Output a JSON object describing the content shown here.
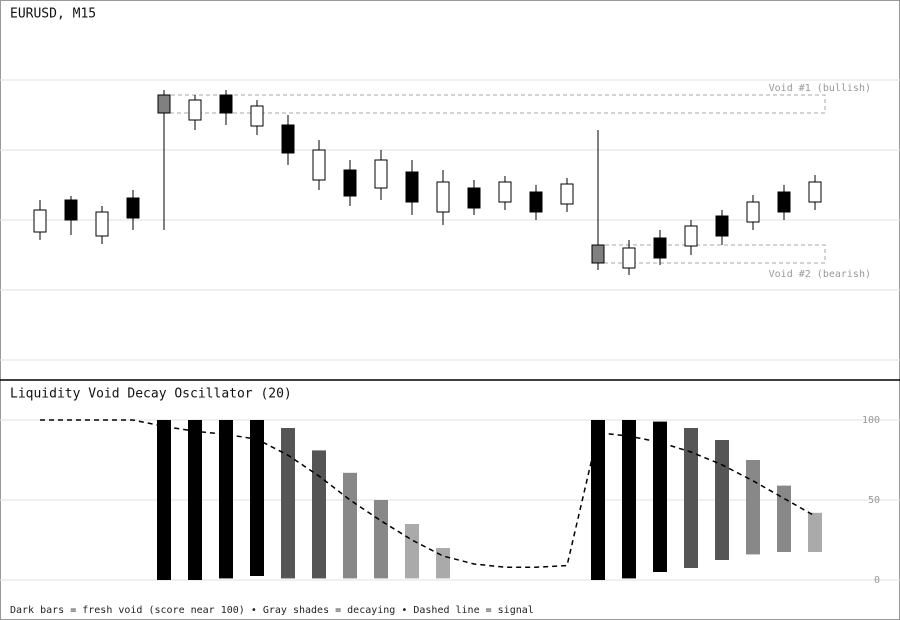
{
  "chart_data": [
    {
      "type": "candlestick",
      "title": "EURUSD, M15",
      "categories": [
        null,
        null,
        null,
        null,
        null,
        null,
        null,
        null,
        null,
        null,
        null,
        null,
        null,
        null,
        null,
        null,
        null,
        null,
        null,
        null,
        null,
        null,
        null,
        null,
        null,
        null
      ],
      "open": [
        148,
        180,
        144,
        182,
        267,
        260,
        285,
        254,
        255,
        200,
        210,
        192,
        208,
        168,
        192,
        178,
        188,
        176,
        135,
        112,
        142,
        134,
        164,
        158,
        188,
        178
      ],
      "high": [
        180,
        184,
        174,
        190,
        290,
        285,
        290,
        280,
        265,
        240,
        220,
        230,
        220,
        210,
        200,
        204,
        195,
        202,
        250,
        140,
        150,
        160,
        170,
        185,
        195,
        205
      ],
      "low": [
        140,
        145,
        136,
        150,
        150,
        250,
        255,
        245,
        215,
        190,
        174,
        180,
        165,
        155,
        165,
        170,
        160,
        168,
        110,
        105,
        115,
        125,
        135,
        150,
        160,
        170
      ],
      "close": [
        170,
        160,
        168,
        162,
        285,
        280,
        267,
        274,
        227,
        230,
        184,
        220,
        178,
        198,
        172,
        198,
        168,
        196,
        117,
        132,
        122,
        154,
        144,
        178,
        168,
        198
      ],
      "colors": [
        "#ffffff",
        "#000000",
        "#ffffff",
        "#000000",
        "#808080",
        "#ffffff",
        "#000000",
        "#ffffff",
        "#000000",
        "#ffffff",
        "#000000",
        "#ffffff",
        "#000000",
        "#ffffff",
        "#000000",
        "#ffffff",
        "#000000",
        "#ffffff",
        "#808080",
        "#ffffff",
        "#000000",
        "#ffffff",
        "#000000",
        "#ffffff",
        "#000000",
        "#ffffff"
      ],
      "ylim": [
        0,
        380
      ],
      "zones": [
        {
          "label": "Void #1 (bullish)",
          "high": 285,
          "low": 267,
          "from": 4
        },
        {
          "label": "Void #2 (bearish)",
          "high": 135,
          "low": 117,
          "from": 18
        }
      ]
    },
    {
      "type": "range-bar",
      "title": "Liquidity Void Decay Oscillator (20)",
      "categories": [
        null,
        null,
        null,
        null,
        null,
        null,
        null,
        null,
        null,
        null,
        null,
        null,
        null,
        null,
        null,
        null,
        null,
        null,
        null,
        null,
        null,
        null,
        null,
        null,
        null,
        null
      ],
      "ylim": [
        0,
        100
      ],
      "yticks": [
        0,
        50,
        100
      ],
      "grid": true,
      "bars": {
        "low": [
          null,
          null,
          null,
          null,
          0,
          0,
          1,
          2.5,
          1,
          1,
          1,
          1,
          1,
          1,
          null,
          null,
          null,
          null,
          0,
          1,
          5,
          7.5,
          12.5,
          16,
          17.5,
          17.5
        ],
        "high": [
          null,
          null,
          null,
          null,
          100,
          100,
          100,
          100,
          95,
          81,
          67,
          50,
          35,
          20,
          null,
          null,
          null,
          null,
          100,
          100,
          99,
          95,
          87.5,
          75,
          59,
          42
        ],
        "colors": [
          null,
          null,
          null,
          null,
          "#000000",
          "#000000",
          "#000000",
          "#000000",
          "#555555",
          "#555555",
          "#888888",
          "#888888",
          "#aaaaaa",
          "#aaaaaa",
          null,
          null,
          null,
          null,
          "#000000",
          "#000000",
          "#000000",
          "#555555",
          "#555555",
          "#888888",
          "#888888",
          "#aaaaaa"
        ]
      },
      "signal": {
        "color": "#000000",
        "values": [
          100,
          100,
          100,
          100,
          96,
          93,
          91,
          88,
          78,
          65,
          50,
          37,
          25,
          15,
          10,
          8,
          8,
          9,
          92,
          90,
          86,
          80,
          72,
          62,
          51,
          40
        ]
      },
      "note": "Dark bars = fresh void (score near 100) • Gray shades = decaying • Dashed line = signal"
    }
  ]
}
